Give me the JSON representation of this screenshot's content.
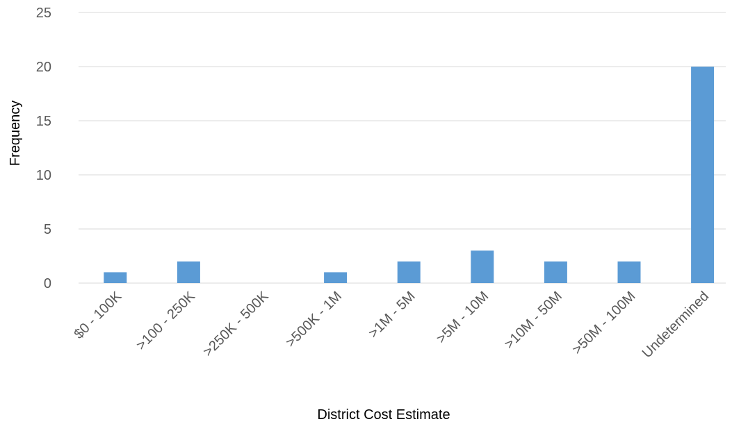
{
  "chart_data": {
    "type": "bar",
    "categories": [
      "$0 - 100K",
      ">100 - 250K",
      ">250K - 500K",
      ">500K - 1M",
      ">1M - 5M",
      ">5M - 10M",
      ">10M - 50M",
      ">50M - 100M",
      "Undetermined"
    ],
    "values": [
      1,
      2,
      0,
      1,
      2,
      3,
      2,
      2,
      20
    ],
    "title": "",
    "xlabel": "District Cost Estimate",
    "ylabel": "Frequency",
    "ylim": [
      0,
      25
    ],
    "yticks": [
      0,
      5,
      10,
      15,
      20,
      25
    ],
    "grid": true,
    "legend": "none",
    "bar_color": "#5b9bd5"
  }
}
